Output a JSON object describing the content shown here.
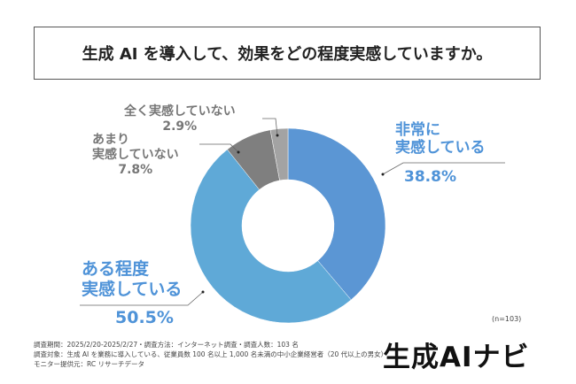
{
  "title": "生成 AI を導入して、効果をどの程度実感していますか。",
  "chart_data": {
    "type": "pie",
    "donut": true,
    "slices": [
      {
        "label": "非常に 実感している",
        "line1": "非常に",
        "line2": "実感している",
        "value": 38.8,
        "display": "38.8%",
        "color": "#5b96d4"
      },
      {
        "label": "ある程度 実感している",
        "line1": "ある程度",
        "line2": "実感している",
        "value": 50.5,
        "display": "50.5%",
        "color": "#5fa9d7"
      },
      {
        "label": "あまり 実感していない",
        "line1": "あまり",
        "line2": "実感していない",
        "value": 7.8,
        "display": "7.8%",
        "color": "#7f7f7f"
      },
      {
        "label": "全く実感していない",
        "line1": "全く実感していない",
        "line2": "",
        "value": 2.9,
        "display": "2.9%",
        "color": "#a3a3a3"
      }
    ]
  },
  "sample": "(n=103)",
  "notes": [
    "調査期間：2025/2/20-2025/2/27・調査方法：インターネット調査・調査人数：103 名",
    "調査対象：生成 AI を業務に導入している、従業員数 100 名以上 1,000 名未満の中小企業経営者（20 代以上の男女）",
    "モニター提供元：RC リサーチデータ"
  ],
  "logo": "生成AIナビ"
}
